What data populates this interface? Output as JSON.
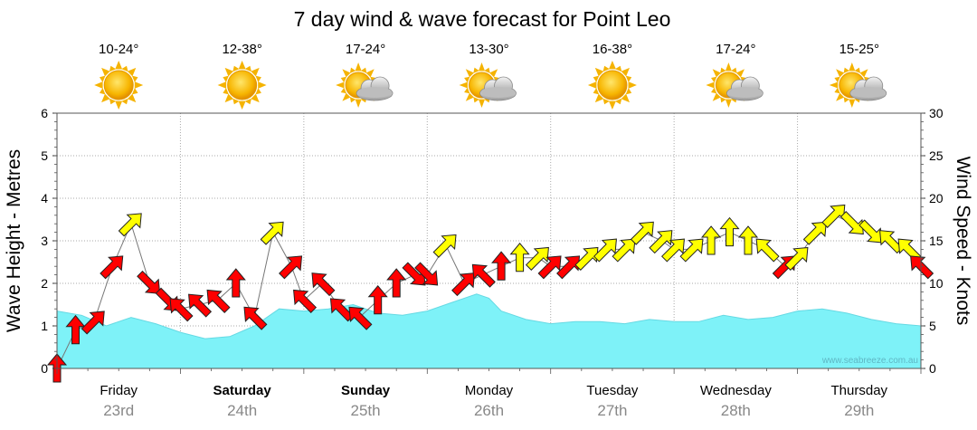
{
  "chart_data": {
    "type": "line",
    "title": "7 day wind & wave forecast for Point Leo",
    "ylabel_left": "Wave Height - Metres",
    "ylabel_right": "Wind Speed - Knots",
    "ylim_left": [
      0,
      6
    ],
    "ylim_right": [
      0,
      30
    ],
    "yticks_left": [
      "0",
      "1",
      "2",
      "3",
      "4",
      "5",
      "6"
    ],
    "yticks_right": [
      "0",
      "5",
      "10",
      "15",
      "20",
      "25",
      "30"
    ],
    "watermark": "www.seabreeze.com.au",
    "days": [
      {
        "name": "Friday",
        "date": "23rd",
        "weekend": false,
        "temp": "10-24°",
        "weather": "sun-icon"
      },
      {
        "name": "Saturday",
        "date": "24th",
        "weekend": true,
        "temp": "12-38°",
        "weather": "sun-icon"
      },
      {
        "name": "Sunday",
        "date": "25th",
        "weekend": true,
        "temp": "17-24°",
        "weather": "sun-cloud-icon"
      },
      {
        "name": "Monday",
        "date": "26th",
        "weekend": false,
        "temp": "13-30°",
        "weather": "sun-cloud-icon"
      },
      {
        "name": "Tuesday",
        "date": "27th",
        "weekend": false,
        "temp": "16-38°",
        "weather": "sun-icon"
      },
      {
        "name": "Wednesday",
        "date": "28th",
        "weekend": false,
        "temp": "17-24°",
        "weather": "sun-cloud-icon"
      },
      {
        "name": "Thursday",
        "date": "29th",
        "weekend": false,
        "temp": "15-25°",
        "weather": "sun-cloud-icon"
      }
    ],
    "wave_series": {
      "name": "Wave height (m)",
      "color": "#7ef2f8",
      "x_days": [
        0,
        0.2,
        0.4,
        0.6,
        0.8,
        1.0,
        1.2,
        1.4,
        1.6,
        1.8,
        2.0,
        2.2,
        2.4,
        2.6,
        2.8,
        3.0,
        3.2,
        3.4,
        3.5,
        3.6,
        3.8,
        4.0,
        4.2,
        4.4,
        4.6,
        4.8,
        5.0,
        5.2,
        5.4,
        5.6,
        5.8,
        6.0,
        6.2,
        6.4,
        6.6,
        6.8,
        7.0
      ],
      "values": [
        1.35,
        1.25,
        1.0,
        1.2,
        1.05,
        0.85,
        0.7,
        0.75,
        1.0,
        1.4,
        1.35,
        1.4,
        1.5,
        1.3,
        1.25,
        1.35,
        1.55,
        1.75,
        1.65,
        1.35,
        1.15,
        1.05,
        1.1,
        1.1,
        1.05,
        1.15,
        1.1,
        1.1,
        1.25,
        1.15,
        1.2,
        1.35,
        1.4,
        1.3,
        1.15,
        1.05,
        1.0
      ]
    },
    "wind_series": {
      "name": "Wind speed (knots)",
      "x_days": [
        0.0,
        0.15,
        0.3,
        0.45,
        0.6,
        0.75,
        0.9,
        1.0,
        1.15,
        1.3,
        1.45,
        1.6,
        1.75,
        1.9,
        2.0,
        2.15,
        2.3,
        2.45,
        2.6,
        2.75,
        2.9,
        3.0,
        3.15,
        3.3,
        3.45,
        3.6,
        3.75,
        3.9,
        4.0,
        4.15,
        4.3,
        4.45,
        4.6,
        4.75,
        4.9,
        5.0,
        5.15,
        5.3,
        5.45,
        5.6,
        5.75,
        5.9,
        6.0,
        6.15,
        6.3,
        6.45,
        6.6,
        6.75,
        6.9,
        7.0
      ],
      "knots": [
        0,
        4.5,
        5.5,
        12,
        17,
        10,
        8,
        7,
        7.5,
        8,
        10,
        6,
        16,
        12,
        8,
        10,
        7,
        6,
        8,
        10,
        11,
        11,
        14.5,
        10,
        11,
        12,
        13,
        13,
        12,
        12,
        13,
        14,
        14,
        16,
        15,
        14,
        14,
        15,
        16,
        15,
        14,
        12,
        13,
        16,
        18,
        17,
        16,
        15,
        14,
        12
      ],
      "direction_deg": [
        90,
        90,
        45,
        45,
        45,
        315,
        315,
        135,
        135,
        135,
        90,
        135,
        45,
        45,
        135,
        135,
        135,
        135,
        90,
        90,
        315,
        315,
        45,
        45,
        135,
        90,
        90,
        45,
        45,
        45,
        45,
        45,
        45,
        45,
        45,
        45,
        45,
        90,
        90,
        90,
        135,
        45,
        45,
        45,
        45,
        315,
        315,
        135,
        135,
        135
      ]
    }
  }
}
